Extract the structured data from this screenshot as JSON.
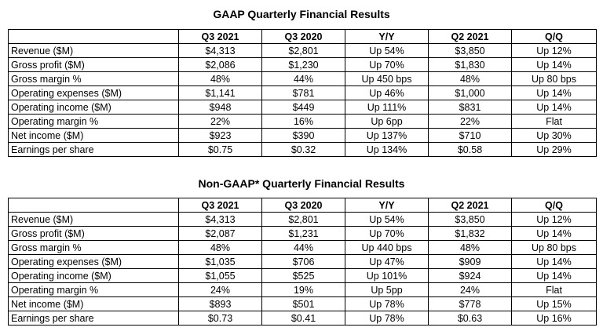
{
  "tables": [
    {
      "title": "GAAP Quarterly Financial Results",
      "headers": [
        "",
        "Q3 2021",
        "Q3 2020",
        "Y/Y",
        "Q2 2021",
        "Q/Q"
      ],
      "rows": [
        [
          "Revenue ($M)",
          "$4,313",
          "$2,801",
          "Up 54%",
          "$3,850",
          "Up 12%"
        ],
        [
          "Gross profit ($M)",
          "$2,086",
          "$1,230",
          "Up 70%",
          "$1,830",
          "Up 14%"
        ],
        [
          "Gross margin %",
          "48%",
          "44%",
          "Up 450 bps",
          "48%",
          "Up 80 bps"
        ],
        [
          "Operating expenses ($M)",
          "$1,141",
          "$781",
          "Up 46%",
          "$1,000",
          "Up 14%"
        ],
        [
          "Operating income ($M)",
          "$948",
          "$449",
          "Up 111%",
          "$831",
          "Up 14%"
        ],
        [
          "Operating margin %",
          "22%",
          "16%",
          "Up 6pp",
          "22%",
          "Flat"
        ],
        [
          "Net income ($M)",
          "$923",
          "$390",
          "Up 137%",
          "$710",
          "Up 30%"
        ],
        [
          "Earnings per share",
          "$0.75",
          "$0.32",
          "Up 134%",
          "$0.58",
          "Up 29%"
        ]
      ]
    },
    {
      "title": "Non-GAAP* Quarterly Financial Results",
      "headers": [
        "",
        "Q3 2021",
        "Q3 2020",
        "Y/Y",
        "Q2 2021",
        "Q/Q"
      ],
      "rows": [
        [
          "Revenue ($M)",
          "$4,313",
          "$2,801",
          "Up 54%",
          "$3,850",
          "Up 12%"
        ],
        [
          "Gross profit ($M)",
          "$2,087",
          "$1,231",
          "Up 70%",
          "$1,832",
          "Up 14%"
        ],
        [
          "Gross margin %",
          "48%",
          "44%",
          "Up 440 bps",
          "48%",
          "Up 80 bps"
        ],
        [
          "Operating expenses ($M)",
          "$1,035",
          "$706",
          "Up 47%",
          "$909",
          "Up 14%"
        ],
        [
          "Operating income ($M)",
          "$1,055",
          "$525",
          "Up 101%",
          "$924",
          "Up 14%"
        ],
        [
          "Operating margin %",
          "24%",
          "19%",
          "Up 5pp",
          "24%",
          "Flat"
        ],
        [
          "Net income ($M)",
          "$893",
          "$501",
          "Up 78%",
          "$778",
          "Up 15%"
        ],
        [
          "Earnings per share",
          "$0.73",
          "$0.41",
          "Up 78%",
          "$0.63",
          "Up 16%"
        ]
      ]
    }
  ]
}
